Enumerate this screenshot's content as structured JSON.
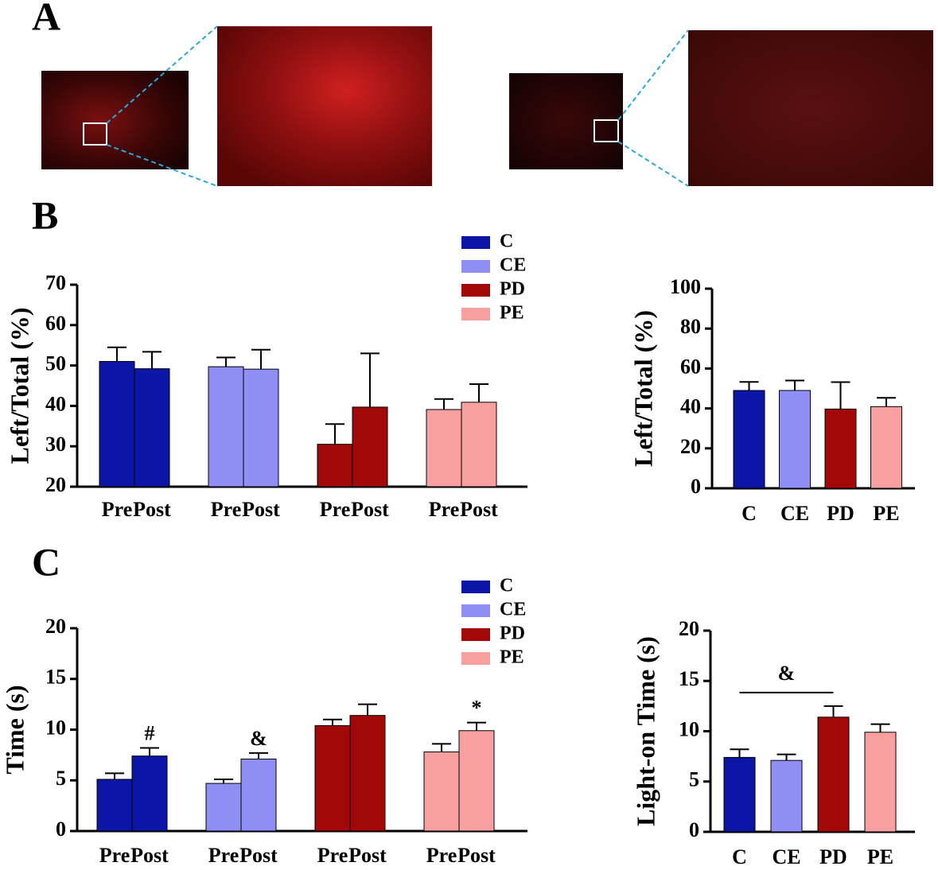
{
  "panel_labels": [
    "A",
    "B",
    "C"
  ],
  "chart_data": [
    {
      "type": "grouped-bar",
      "ylabel": "Left/Total  (%)",
      "categories": [
        "Pre",
        "Post"
      ],
      "ylim": [
        20,
        70
      ],
      "yticks": [
        20,
        30,
        40,
        50,
        60,
        70
      ],
      "series": [
        {
          "name": "C",
          "color": "#0b16a6",
          "values": [
            51,
            49.2
          ],
          "errors": [
            3.5,
            4.2
          ]
        },
        {
          "name": "CE",
          "color": "#8e8ef4",
          "values": [
            49.7,
            49.1
          ],
          "errors": [
            2.3,
            4.8
          ]
        },
        {
          "name": "PD",
          "color": "#a30808",
          "values": [
            30.5,
            39.7
          ],
          "errors": [
            5,
            13.3
          ]
        },
        {
          "name": "PE",
          "color": "#f8a0a0",
          "values": [
            39.1,
            40.9
          ],
          "errors": [
            2.6,
            4.5
          ]
        }
      ]
    },
    {
      "type": "bar",
      "ylabel": "Left/Total  (%)",
      "categories": [
        "C",
        "CE",
        "PD",
        "PE"
      ],
      "values": [
        49,
        49,
        39.7,
        40.9
      ],
      "errors": [
        4.3,
        5,
        13.5,
        4.4
      ],
      "colors": [
        "#0b16a6",
        "#8e8ef4",
        "#a30808",
        "#f8a0a0"
      ],
      "ylim": [
        0,
        100
      ],
      "yticks": [
        0,
        20,
        40,
        60,
        80,
        100
      ]
    },
    {
      "type": "grouped-bar",
      "ylabel": "Time (s)",
      "categories": [
        "Pre",
        "Post"
      ],
      "ylim": [
        0,
        20
      ],
      "yticks": [
        0,
        5,
        10,
        15,
        20
      ],
      "series": [
        {
          "name": "C",
          "color": "#0b16a6",
          "values": [
            5.1,
            7.4
          ],
          "errors": [
            0.6,
            0.8
          ],
          "annotations": [
            null,
            "#"
          ]
        },
        {
          "name": "CE",
          "color": "#8e8ef4",
          "values": [
            4.7,
            7.1
          ],
          "errors": [
            0.4,
            0.6
          ],
          "annotations": [
            null,
            "&"
          ]
        },
        {
          "name": "PD",
          "color": "#a30808",
          "values": [
            10.4,
            11.4
          ],
          "errors": [
            0.6,
            1.1
          ],
          "annotations": [
            null,
            null
          ]
        },
        {
          "name": "PE",
          "color": "#f8a0a0",
          "values": [
            7.8,
            9.9
          ],
          "errors": [
            0.8,
            0.8
          ],
          "annotations": [
            null,
            "*"
          ]
        }
      ]
    },
    {
      "type": "bar",
      "ylabel": "Light-on Time (s)",
      "categories": [
        "C",
        "CE",
        "PD",
        "PE"
      ],
      "values": [
        7.4,
        7.1,
        11.4,
        9.9
      ],
      "errors": [
        0.8,
        0.6,
        1.1,
        0.8
      ],
      "colors": [
        "#0b16a6",
        "#8e8ef4",
        "#a30808",
        "#f8a0a0"
      ],
      "ylim": [
        0,
        20
      ],
      "yticks": [
        0,
        5,
        10,
        15,
        20
      ],
      "bracket": {
        "text": "&",
        "from": "C",
        "to": "PD"
      }
    }
  ]
}
